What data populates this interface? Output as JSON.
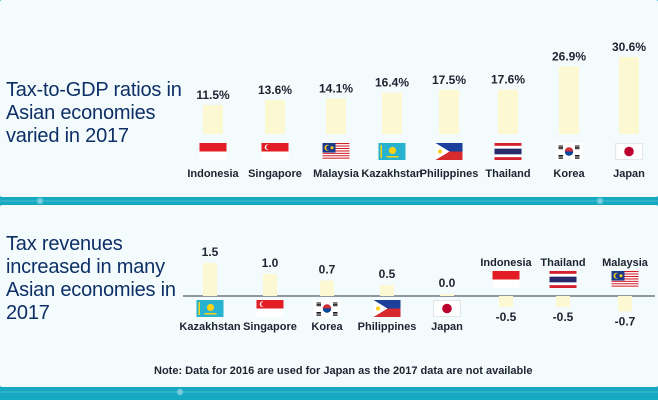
{
  "colors": {
    "background": "#17a8c2",
    "panel": "#f3fbfd",
    "bar": "#fbf8d2",
    "heading": "#0e2f66",
    "text": "#1d2330"
  },
  "chart_data": [
    {
      "type": "bar",
      "title": "Tax-to-GDP ratios in Asian economies varied in 2017",
      "categories": [
        "Indonesia",
        "Singapore",
        "Malaysia",
        "Kazakhstan",
        "Philippines",
        "Thailand",
        "Korea",
        "Japan"
      ],
      "value_labels": [
        "11.5%",
        "13.6%",
        "14.1%",
        "16.4%",
        "17.5%",
        "17.6%",
        "26.9%",
        "30.6%"
      ],
      "values": [
        11.5,
        13.6,
        14.1,
        16.4,
        17.5,
        17.6,
        26.9,
        30.6
      ],
      "unit": "%",
      "flags": [
        "indonesia-flag",
        "singapore-flag",
        "malaysia-flag",
        "kazakhstan-flag",
        "philippines-flag",
        "thailand-flag",
        "korea-flag",
        "japan-flag"
      ]
    },
    {
      "type": "bar",
      "title": "Tax revenues increased in many Asian economies in 2017",
      "categories": [
        "Kazakhstan",
        "Singapore",
        "Korea",
        "Philippines",
        "Japan",
        "Indonesia",
        "Thailand",
        "Malaysia"
      ],
      "value_labels": [
        "1.5",
        "1.0",
        "0.7",
        "0.5",
        "0.0",
        "-0.5",
        "-0.5",
        "-0.7"
      ],
      "values": [
        1.5,
        1.0,
        0.7,
        0.5,
        0.0,
        -0.5,
        -0.5,
        -0.7
      ],
      "flags": [
        "kazakhstan-flag",
        "singapore-flag",
        "korea-flag",
        "philippines-flag",
        "japan-flag",
        "indonesia-flag",
        "thailand-flag",
        "malaysia-flag"
      ],
      "baseline": 0
    }
  ],
  "footnote": "Note: Data for 2016 are used for Japan as the 2017 data are not available"
}
